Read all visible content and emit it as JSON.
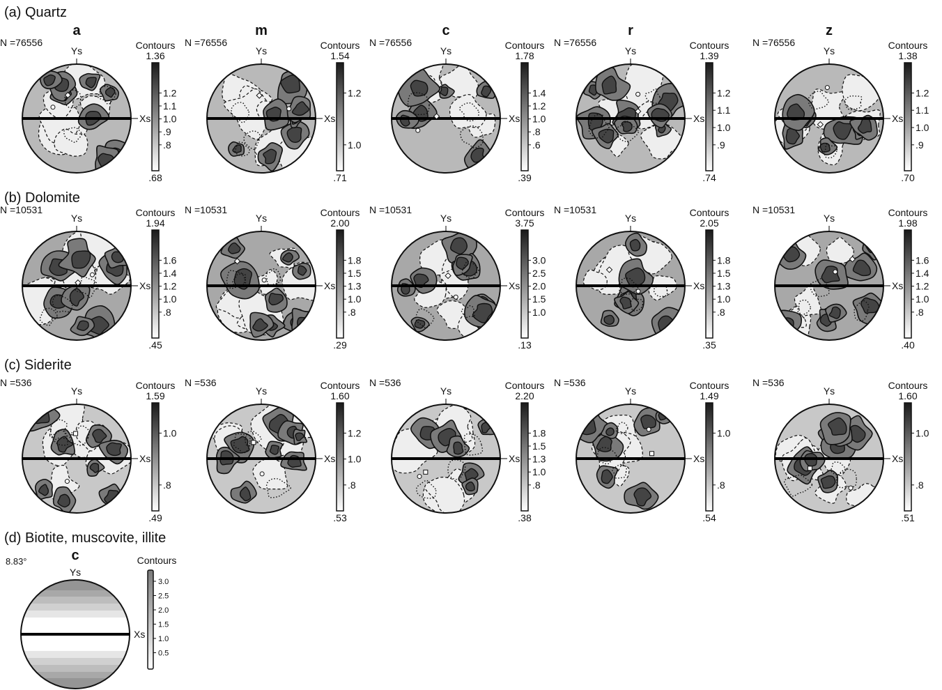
{
  "rows": [
    {
      "title": "(a) Quartz",
      "show_poles": true,
      "panels": [
        {
          "pole": "a",
          "n_label": "N =76556",
          "contours_label": "Contours",
          "max": "1.36",
          "min": ".68",
          "ticks": [
            "1.2",
            "1.1",
            "1.0",
            ".9",
            ".8"
          ],
          "marker": "diamond"
        },
        {
          "pole": "m",
          "n_label": "N =76556",
          "contours_label": "Contours",
          "max": "1.54",
          "min": ".71",
          "ticks": [
            "1.2",
            "1.0"
          ],
          "marker": "diamond"
        },
        {
          "pole": "c",
          "n_label": "N =76556",
          "contours_label": "Contours",
          "max": "1.78",
          "min": ".39",
          "ticks": [
            "1.4",
            "1.2",
            "1.0",
            ".8",
            ".6"
          ],
          "marker": "diamond"
        },
        {
          "pole": "r",
          "n_label": "N =76556",
          "contours_label": "Contours",
          "max": "1.39",
          "min": ".74",
          "ticks": [
            "1.2",
            "1.1",
            "1.0",
            ".9"
          ],
          "marker": "diamond"
        },
        {
          "pole": "z",
          "n_label": "N =76556",
          "contours_label": "Contours",
          "max": "1.38",
          "min": ".70",
          "ticks": [
            "1.2",
            "1.1",
            "1.0",
            ".9"
          ],
          "marker": "diamond"
        }
      ]
    },
    {
      "title": "(b) Dolomite",
      "show_poles": false,
      "panels": [
        {
          "n_label": "N =10531",
          "contours_label": "Contours",
          "max": "1.94",
          "min": ".45",
          "ticks": [
            "1.6",
            "1.4",
            "1.2",
            "1.0",
            ".8"
          ],
          "marker": "diamond"
        },
        {
          "n_label": "N =10531",
          "contours_label": "Contours",
          "max": "2.00",
          "min": ".29",
          "ticks": [
            "1.8",
            "1.5",
            "1.3",
            "1.0",
            ".8"
          ],
          "marker": "diamond"
        },
        {
          "n_label": "N =10531",
          "contours_label": "Contours",
          "max": "3.75",
          "min": ".13",
          "ticks": [
            "3.0",
            "2.5",
            "2.0",
            "1.5",
            "1.0"
          ],
          "marker": "diamond"
        },
        {
          "n_label": "N =10531",
          "contours_label": "Contours",
          "max": "2.05",
          "min": ".35",
          "ticks": [
            "1.8",
            "1.5",
            "1.3",
            "1.0",
            ".8"
          ],
          "marker": "diamond"
        },
        {
          "n_label": "N =10531",
          "contours_label": "Contours",
          "max": "1.98",
          "min": ".40",
          "ticks": [
            "1.6",
            "1.4",
            "1.2",
            "1.0",
            ".8"
          ],
          "marker": "diamond"
        }
      ]
    },
    {
      "title": "(c) Siderite",
      "show_poles": false,
      "panels": [
        {
          "n_label": "N =536",
          "contours_label": "Contours",
          "max": "1.59",
          "min": ".49",
          "ticks": [
            "1.0",
            ".8"
          ],
          "marker": "square"
        },
        {
          "n_label": "N =536",
          "contours_label": "Contours",
          "max": "1.60",
          "min": ".53",
          "ticks": [
            "1.2",
            "1.0",
            ".8"
          ],
          "marker": "square"
        },
        {
          "n_label": "N =536",
          "contours_label": "Contours",
          "max": "2.20",
          "min": ".38",
          "ticks": [
            "1.8",
            "1.5",
            "1.3",
            "1.0",
            ".8"
          ],
          "marker": "square"
        },
        {
          "n_label": "N =536",
          "contours_label": "Contours",
          "max": "1.49",
          "min": ".54",
          "ticks": [
            "1.0",
            ".8"
          ],
          "marker": "square"
        },
        {
          "n_label": "N =536",
          "contours_label": "Contours",
          "max": "1.60",
          "min": ".51",
          "ticks": [
            "1.0",
            ".8"
          ],
          "marker": "square"
        }
      ]
    }
  ],
  "mica": {
    "title": "(d) Biotite, muscovite, illite",
    "pole": "c",
    "angle_label": "8.83°",
    "contours_label": "Contours",
    "ticks": [
      "3.0",
      "2.5",
      "2.0",
      "1.5",
      "1.0",
      "0.5"
    ]
  },
  "axis_labels": {
    "x": "Xs",
    "y": "Ys"
  }
}
